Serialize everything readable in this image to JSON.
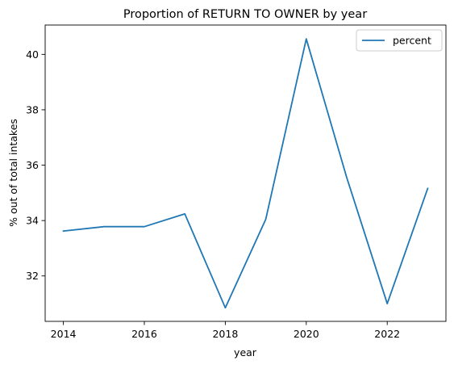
{
  "chart_data": {
    "type": "line",
    "title": "Proportion of RETURN TO OWNER by year",
    "xlabel": "year",
    "ylabel": "% out of total intakes",
    "x": [
      2014,
      2015,
      2016,
      2017,
      2018,
      2019,
      2020,
      2021,
      2022,
      2023
    ],
    "series": [
      {
        "name": "percent",
        "values": [
          33.62,
          33.78,
          33.78,
          34.24,
          30.85,
          34.05,
          40.56,
          35.55,
          31.0,
          35.16
        ],
        "color": "#1f77b4"
      }
    ],
    "xlim": [
      2013.55,
      2023.45
    ],
    "ylim": [
      30.36,
      41.06
    ],
    "xticks": [
      2014,
      2016,
      2018,
      2020,
      2022
    ],
    "xtick_labels": [
      "2014",
      "2016",
      "2018",
      "2020",
      "2022"
    ],
    "yticks": [
      32,
      34,
      36,
      38,
      40
    ],
    "ytick_labels": [
      "32",
      "34",
      "36",
      "38",
      "40"
    ],
    "grid": false,
    "legend": {
      "position": "top-right",
      "entries": [
        "percent"
      ]
    }
  }
}
